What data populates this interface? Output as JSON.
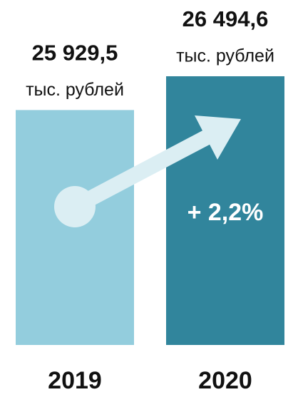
{
  "chart_data": {
    "type": "bar",
    "categories": [
      "2019",
      "2020"
    ],
    "values": [
      25929.5,
      26494.6
    ],
    "value_labels": [
      "25 929,5",
      "26 494,6"
    ],
    "unit": "тыс. рублей",
    "colors": [
      "#93cddd",
      "#31859c"
    ],
    "annotation": "+ 2,2%",
    "ylim": [
      22000,
      27000
    ]
  }
}
